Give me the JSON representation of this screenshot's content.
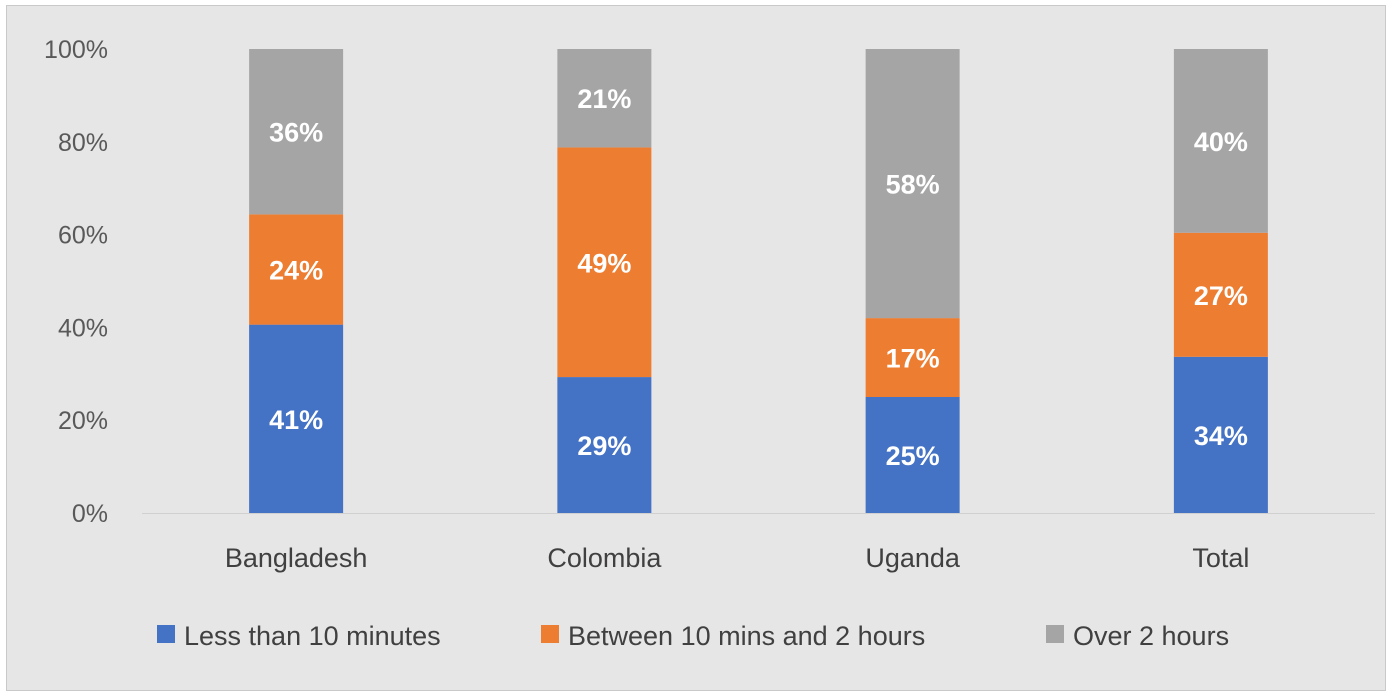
{
  "chart_data": {
    "type": "bar",
    "stacked": true,
    "categories": [
      "Bangladesh",
      "Colombia",
      "Uganda",
      "Total"
    ],
    "series": [
      {
        "name": "Less than 10 minutes",
        "values": [
          41,
          29,
          25,
          34
        ],
        "labels": [
          "41%",
          "29%",
          "25%",
          "34%"
        ],
        "color": "#4472c4"
      },
      {
        "name": "Between 10 mins and 2 hours",
        "values": [
          24,
          49,
          17,
          27
        ],
        "labels": [
          "24%",
          "49%",
          "17%",
          "27%"
        ],
        "color": "#ed7d31"
      },
      {
        "name": "Over 2 hours",
        "values": [
          36,
          21,
          58,
          40
        ],
        "labels": [
          "36%",
          "21%",
          "58%",
          "40%"
        ],
        "color": "#a5a5a5"
      }
    ],
    "yticks": [
      "0%",
      "20%",
      "40%",
      "60%",
      "80%",
      "100%"
    ],
    "ylim": [
      0,
      100
    ],
    "legend_position": "bottom",
    "grid": false
  }
}
